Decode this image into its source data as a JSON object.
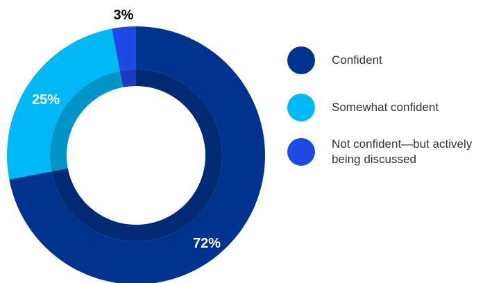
{
  "chart_data": {
    "type": "pie",
    "categories": [
      "Confident",
      "Somewhat confident",
      "Not confident—but actively being discussed"
    ],
    "values": [
      72,
      25,
      3
    ],
    "data_labels": [
      "72%",
      "25%",
      "3%"
    ],
    "colors": [
      "#00338D",
      "#00B8F5",
      "#1E49E2"
    ],
    "inner_ring_colors": [
      "#002a74",
      "#0095c8",
      "#1a3dbf"
    ],
    "label_colors": [
      "#ffffff",
      "#ffffff",
      "#000000"
    ],
    "legend_position": "right",
    "donut": true
  },
  "legend": {
    "items": [
      {
        "label": "Confident",
        "color": "#00338D"
      },
      {
        "label": "Somewhat confident",
        "color": "#00B8F5"
      },
      {
        "label": "Not confident—but actively being discussed",
        "color": "#1E49E2"
      }
    ]
  }
}
